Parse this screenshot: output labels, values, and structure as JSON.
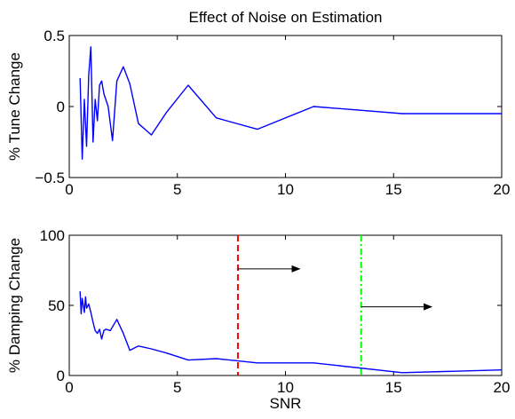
{
  "chart_data": [
    {
      "type": "line",
      "title": "Effect of Noise on Estimation",
      "xlabel": "",
      "ylabel": "% Tune Change",
      "xlim": [
        0,
        20
      ],
      "ylim": [
        -0.5,
        0.5
      ],
      "xticks": [
        0,
        5,
        10,
        15,
        20
      ],
      "xtick_labels": [
        "0",
        "5",
        "10",
        "15",
        "20"
      ],
      "yticks": [
        -0.5,
        0,
        0.5
      ],
      "ytick_labels": [
        "−0.5",
        "0",
        "0.5"
      ],
      "grid": false,
      "series": [
        {
          "color": "#0000ff",
          "x": [
            0.5,
            0.6,
            0.7,
            0.8,
            0.9,
            1.0,
            1.1,
            1.2,
            1.3,
            1.4,
            1.5,
            1.6,
            1.8,
            2.0,
            2.2,
            2.5,
            2.8,
            3.2,
            3.8,
            4.5,
            5.5,
            6.8,
            8.7,
            11.3,
            15.4,
            20.0
          ],
          "y": [
            0.2,
            -0.37,
            0.05,
            -0.28,
            0.22,
            0.42,
            -0.25,
            0.05,
            -0.1,
            0.15,
            0.18,
            0.09,
            0.0,
            -0.24,
            0.18,
            0.28,
            0.16,
            -0.12,
            -0.2,
            -0.04,
            0.15,
            -0.08,
            -0.16,
            0.0,
            -0.05,
            -0.05
          ]
        }
      ]
    },
    {
      "type": "line",
      "title": "",
      "xlabel": "SNR",
      "ylabel": "% Damping Change",
      "xlim": [
        0,
        20
      ],
      "ylim": [
        0,
        100
      ],
      "xticks": [
        0,
        5,
        10,
        15,
        20
      ],
      "xtick_labels": [
        "0",
        "5",
        "10",
        "15",
        "20"
      ],
      "yticks": [
        0,
        50,
        100
      ],
      "ytick_labels": [
        "0",
        "50",
        "100"
      ],
      "grid": false,
      "series": [
        {
          "color": "#0000ff",
          "x": [
            0.5,
            0.55,
            0.6,
            0.7,
            0.75,
            0.8,
            0.9,
            1.0,
            1.1,
            1.2,
            1.3,
            1.4,
            1.5,
            1.6,
            1.7,
            1.9,
            2.2,
            2.5,
            2.8,
            3.2,
            3.8,
            4.5,
            5.5,
            6.8,
            8.7,
            11.3,
            15.4,
            20.0
          ],
          "y": [
            60,
            44,
            55,
            45,
            56,
            48,
            51,
            45,
            38,
            32,
            30,
            33,
            26,
            32,
            33,
            32,
            40,
            30,
            18,
            21,
            19,
            16,
            11,
            12,
            9,
            9,
            2,
            4
          ]
        }
      ],
      "annotations": [
        {
          "kind": "vertical-line",
          "x": 7.8,
          "style": "dashed",
          "color": "#ff0000"
        },
        {
          "kind": "vertical-line",
          "x": 13.5,
          "style": "dash-dot",
          "color": "#00ff00"
        },
        {
          "kind": "arrow",
          "x_start": 7.8,
          "x_end": 10.7,
          "y": 76,
          "color": "#000000"
        },
        {
          "kind": "arrow",
          "x_start": 13.5,
          "x_end": 16.8,
          "y": 49,
          "color": "#000000"
        }
      ]
    }
  ]
}
